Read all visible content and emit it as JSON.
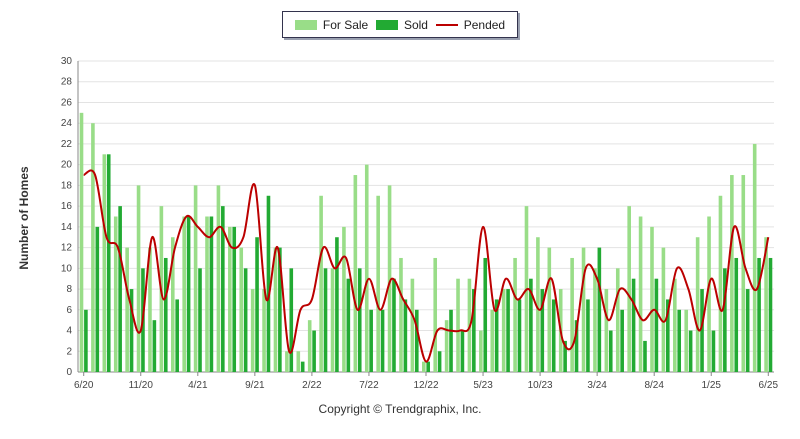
{
  "chart_data": {
    "type": "bar",
    "ylabel": "Number of Homes",
    "ylim": [
      0,
      30
    ],
    "yticks": [
      0,
      2,
      4,
      6,
      8,
      10,
      12,
      14,
      16,
      18,
      20,
      22,
      24,
      26,
      28,
      30
    ],
    "xtick_labels": [
      "6/20",
      "11/20",
      "4/21",
      "9/21",
      "2/22",
      "7/22",
      "12/22",
      "5/23",
      "10/23",
      "3/24",
      "8/24",
      "1/25",
      "6/25"
    ],
    "legend_position": "top-center",
    "grid": true,
    "categories": [
      "6/20",
      "7/20",
      "8/20",
      "9/20",
      "10/20",
      "11/20",
      "12/20",
      "1/21",
      "2/21",
      "3/21",
      "4/21",
      "5/21",
      "6/21",
      "7/21",
      "8/21",
      "9/21",
      "10/21",
      "11/21",
      "12/21",
      "1/22",
      "2/22",
      "3/22",
      "4/22",
      "5/22",
      "6/22",
      "7/22",
      "8/22",
      "9/22",
      "10/22",
      "11/22",
      "12/22",
      "1/23",
      "2/23",
      "3/23",
      "4/23",
      "5/23",
      "6/23",
      "7/23",
      "8/23",
      "9/23",
      "10/23",
      "11/23",
      "12/23",
      "1/24",
      "2/24",
      "3/24",
      "4/24",
      "5/24",
      "6/24",
      "7/24",
      "8/24",
      "9/24",
      "10/24",
      "11/24",
      "12/24",
      "1/25",
      "2/25",
      "3/25",
      "4/25",
      "5/25",
      "6/25"
    ],
    "series": [
      {
        "name": "For Sale",
        "color": "#99dd88",
        "values": [
          25,
          24,
          21,
          15,
          12,
          18,
          12,
          16,
          13,
          15,
          18,
          15,
          18,
          14,
          12,
          8,
          8,
          12,
          2,
          2,
          5,
          17,
          10,
          14,
          19,
          20,
          17,
          18,
          11,
          9,
          1,
          11,
          5,
          9,
          9,
          4,
          6,
          8,
          11,
          16,
          13,
          12,
          8,
          11,
          12,
          10,
          8,
          10,
          16,
          15,
          14,
          12,
          9,
          6,
          13,
          15,
          17,
          19,
          19,
          22,
          13
        ]
      },
      {
        "name": "Sold",
        "color": "#22aa33",
        "values": [
          6,
          14,
          21,
          16,
          8,
          10,
          5,
          11,
          7,
          15,
          10,
          15,
          16,
          14,
          10,
          13,
          17,
          12,
          10,
          1,
          4,
          10,
          13,
          9,
          10,
          6,
          6,
          9,
          7,
          6,
          1,
          2,
          6,
          4,
          8,
          11,
          7,
          8,
          7,
          9,
          8,
          7,
          3,
          5,
          7,
          12,
          4,
          6,
          9,
          3,
          9,
          7,
          6,
          4,
          8,
          4,
          10,
          11,
          8,
          11,
          11
        ]
      },
      {
        "name": "Pended",
        "color": "#bb0000",
        "values": [
          19,
          19,
          13,
          12,
          7,
          4,
          13,
          7,
          12,
          15,
          14,
          13,
          14,
          12,
          13,
          18,
          7,
          12,
          2,
          6,
          7,
          12,
          10,
          11,
          6,
          9,
          6,
          9,
          7,
          5,
          1,
          4,
          4,
          4,
          5,
          14,
          6,
          9,
          7,
          8,
          6,
          9,
          3,
          3,
          10,
          9,
          5,
          8,
          7,
          5,
          6,
          5,
          10,
          8,
          4,
          9,
          6,
          14,
          10,
          8,
          13
        ]
      }
    ]
  },
  "copyright": "Copyright © Trendgraphix, Inc."
}
